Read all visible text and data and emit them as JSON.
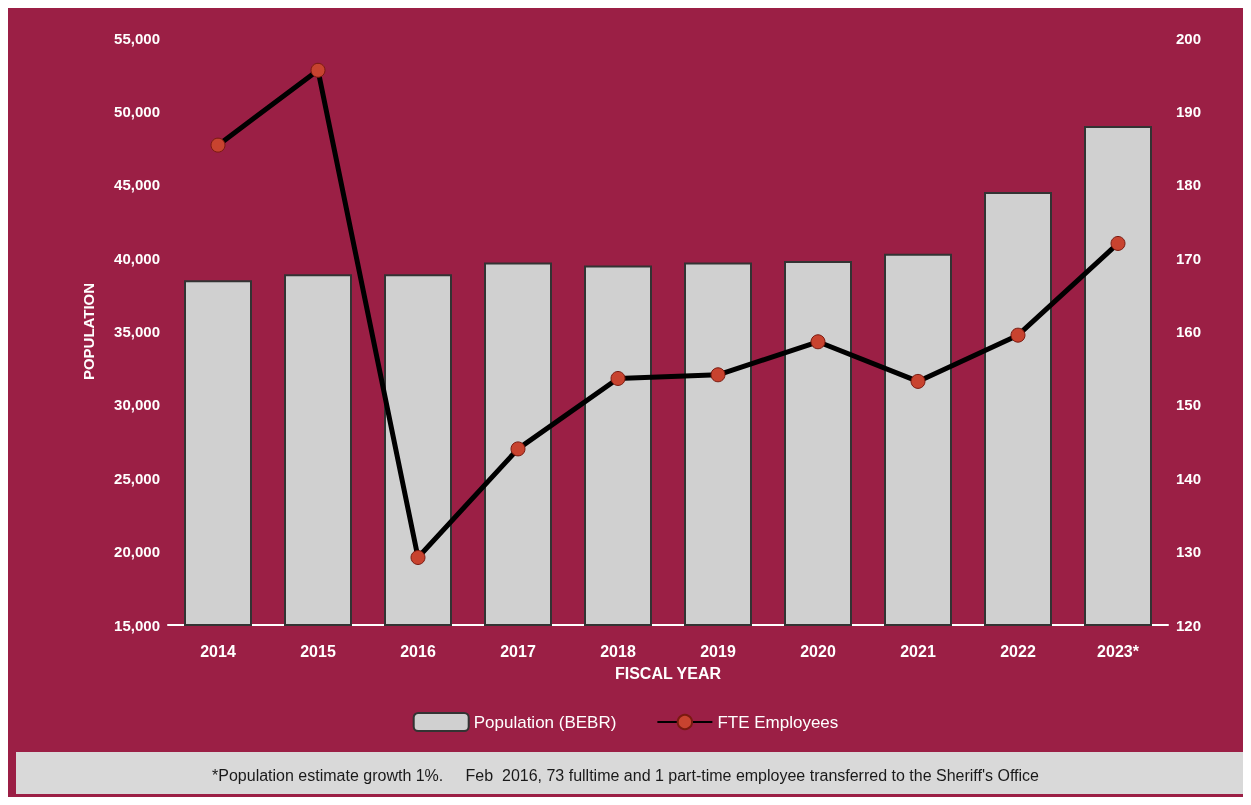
{
  "chart_data": {
    "type": "bar",
    "xlabel": "FISCAL YEAR",
    "ylabel": "POPULATION",
    "categories": [
      "2014",
      "2015",
      "2016",
      "2017",
      "2018",
      "2019",
      "2020",
      "2021",
      "2022",
      "2023*"
    ],
    "series": [
      {
        "name": "Population (BEBR)",
        "color": "#d0d0d0",
        "values": [
          38500,
          38900,
          38900,
          39700,
          39500,
          39700,
          39800,
          40300,
          44500,
          49000
        ]
      },
      {
        "name": "FTE Employees",
        "type": "line",
        "axis": "y2",
        "color": "#000000",
        "marker": "circle",
        "values": [
          185.4,
          195.6,
          129.2,
          144,
          153.6,
          154.1,
          158.6,
          153.2,
          159.5,
          172
        ]
      }
    ],
    "ylim": [
      15000,
      55000
    ],
    "yticks": [
      {
        "value": 15000,
        "label": "15,000"
      },
      {
        "value": 20000,
        "label": "20,000"
      },
      {
        "value": 25000,
        "label": "25,000"
      },
      {
        "value": 30000,
        "label": "30,000"
      },
      {
        "value": 35000,
        "label": "35,000"
      },
      {
        "value": 40000,
        "label": "40,000"
      },
      {
        "value": 45000,
        "label": "45,000"
      },
      {
        "value": 50000,
        "label": "50,000"
      },
      {
        "value": 55000,
        "label": "55,000"
      }
    ],
    "y2lim": [
      120,
      200
    ],
    "y2ticks": [
      120,
      130,
      140,
      150,
      160,
      170,
      180,
      190,
      200
    ],
    "grid": false,
    "legend": "bottom",
    "annotations": [
      "*Population estimate growth 1%.     Feb  2016, 73 fulltime and 1 part-time employee transferred to the Sheriff's Office"
    ]
  }
}
